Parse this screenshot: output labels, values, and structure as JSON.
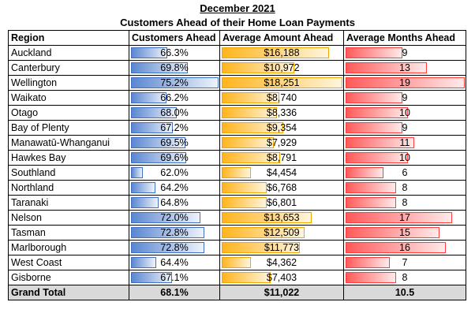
{
  "title": "December 2021",
  "subtitle": "Customers Ahead of their Home Loan Payments",
  "columns": [
    "Region",
    "Customers Ahead",
    "Average Amount Ahead",
    "Average Months Ahead"
  ],
  "rows": [
    {
      "region": "Auckland",
      "customers": "66.3%",
      "amount": "$16,188",
      "months": "9"
    },
    {
      "region": "Canterbury",
      "customers": "69.8%",
      "amount": "$10,972",
      "months": "13"
    },
    {
      "region": "Wellington",
      "customers": "75.2%",
      "amount": "$18,251",
      "months": "19"
    },
    {
      "region": "Waikato",
      "customers": "66.2%",
      "amount": "$8,740",
      "months": "9"
    },
    {
      "region": "Otago",
      "customers": "68.0%",
      "amount": "$8,336",
      "months": "10"
    },
    {
      "region": "Bay of Plenty",
      "customers": "67.2%",
      "amount": "$9,354",
      "months": "9"
    },
    {
      "region": "Manawatū-Whanganui",
      "customers": "69.5%",
      "amount": "$7,929",
      "months": "11"
    },
    {
      "region": "Hawkes Bay",
      "customers": "69.6%",
      "amount": "$8,791",
      "months": "10"
    },
    {
      "region": "Southland",
      "customers": "62.0%",
      "amount": "$4,454",
      "months": "6"
    },
    {
      "region": "Northland",
      "customers": "64.2%",
      "amount": "$6,768",
      "months": "8"
    },
    {
      "region": "Taranaki",
      "customers": "64.8%",
      "amount": "$6,801",
      "months": "8"
    },
    {
      "region": "Nelson",
      "customers": "72.0%",
      "amount": "$13,653",
      "months": "17"
    },
    {
      "region": "Tasman",
      "customers": "72.8%",
      "amount": "$12,509",
      "months": "15"
    },
    {
      "region": "Marlborough",
      "customers": "72.8%",
      "amount": "$11,773",
      "months": "16"
    },
    {
      "region": "West Coast",
      "customers": "64.4%",
      "amount": "$4,362",
      "months": "7"
    },
    {
      "region": "Gisborne",
      "customers": "67.1%",
      "amount": "$7,403",
      "months": "8"
    }
  ],
  "total": {
    "region": "Grand Total",
    "customers": "68.1%",
    "amount": "$11,022",
    "months": "10.5"
  },
  "bar_scale": {
    "customers": {
      "min": 60.0,
      "max": 75.2
    },
    "amount": {
      "min": 0,
      "max": 18251
    },
    "months": {
      "min": 0,
      "max": 19
    }
  },
  "colors": {
    "customers_bar": "#5b87d0",
    "amount_bar": "#ffb41e",
    "months_bar": "#ff5a5a",
    "total_row": "#d9d9d9"
  }
}
